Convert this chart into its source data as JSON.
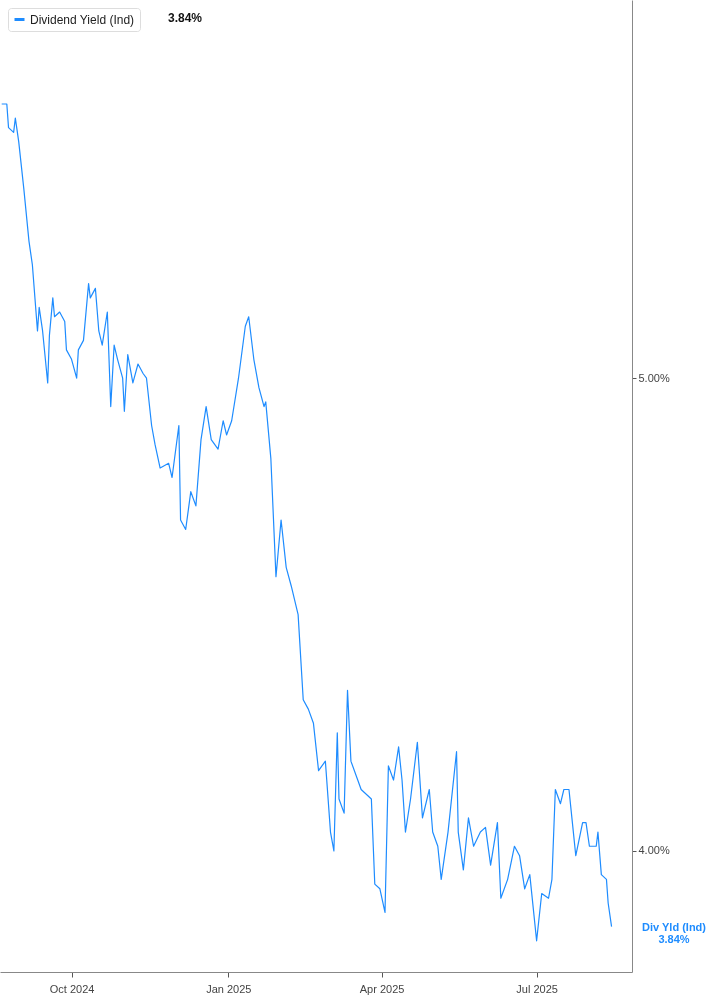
{
  "chart_data": {
    "type": "line",
    "x": [
      "2024-08-21",
      "2024-08-24",
      "2024-08-25",
      "2024-08-28",
      "2024-08-29",
      "2024-08-31",
      "2024-09-03",
      "2024-09-06",
      "2024-09-08",
      "2024-09-11",
      "2024-09-12",
      "2024-09-14",
      "2024-09-17",
      "2024-09-18",
      "2024-09-20",
      "2024-09-21",
      "2024-09-24",
      "2024-09-27",
      "2024-09-28",
      "2024-10-01",
      "2024-10-04",
      "2024-10-05",
      "2024-10-08",
      "2024-10-11",
      "2024-10-12",
      "2024-10-15",
      "2024-10-17",
      "2024-10-19",
      "2024-10-22",
      "2024-10-24",
      "2024-10-26",
      "2024-10-28",
      "2024-10-31",
      "2024-11-01",
      "2024-11-03",
      "2024-11-06",
      "2024-11-09",
      "2024-11-12",
      "2024-11-14",
      "2024-11-17",
      "2024-11-19",
      "2024-11-22",
      "2024-11-27",
      "2024-11-29",
      "2024-12-03",
      "2024-12-04",
      "2024-12-07",
      "2024-12-10",
      "2024-12-13",
      "2024-12-16",
      "2024-12-19",
      "2024-12-22",
      "2024-12-26",
      "2024-12-29",
      "2024-12-31",
      "2025-01-03",
      "2025-01-07",
      "2025-01-11",
      "2025-01-13",
      "2025-01-16",
      "2025-01-19",
      "2025-01-22",
      "2025-01-23",
      "2025-01-26",
      "2025-01-29",
      "2025-02-01",
      "2025-02-04",
      "2025-02-07",
      "2025-02-11",
      "2025-02-14",
      "2025-02-17",
      "2025-02-20",
      "2025-02-23",
      "2025-02-27",
      "2025-03-02",
      "2025-03-04",
      "2025-03-06",
      "2025-03-07",
      "2025-03-10",
      "2025-03-12",
      "2025-03-14",
      "2025-03-18",
      "2025-03-20",
      "2025-03-26",
      "2025-03-28",
      "2025-03-31",
      "2025-04-03",
      "2025-04-05",
      "2025-04-08",
      "2025-04-11",
      "2025-04-13",
      "2025-04-15",
      "2025-04-18",
      "2025-04-22",
      "2025-04-25",
      "2025-04-29",
      "2025-05-01",
      "2025-05-04",
      "2025-05-06",
      "2025-05-10",
      "2025-05-15",
      "2025-05-16",
      "2025-05-19",
      "2025-05-22",
      "2025-05-25",
      "2025-05-29",
      "2025-06-01",
      "2025-06-04",
      "2025-06-08",
      "2025-06-10",
      "2025-06-14",
      "2025-06-18",
      "2025-06-21",
      "2025-06-24",
      "2025-06-27",
      "2025-07-01",
      "2025-07-04",
      "2025-07-08",
      "2025-07-10",
      "2025-07-12",
      "2025-07-15",
      "2025-07-17",
      "2025-07-20",
      "2025-07-22",
      "2025-07-24",
      "2025-07-28",
      "2025-07-30",
      "2025-08-01",
      "2025-08-05",
      "2025-08-06",
      "2025-08-08",
      "2025-08-11",
      "2025-08-12",
      "2025-08-14"
    ],
    "series": [
      {
        "name": "Dividend Yield (Ind)",
        "color": "#1e8cff",
        "values": [
          5.58,
          5.58,
          5.53,
          5.52,
          5.55,
          5.5,
          5.4,
          5.29,
          5.24,
          5.1,
          5.15,
          5.1,
          4.99,
          5.09,
          5.17,
          5.13,
          5.14,
          5.12,
          5.06,
          5.04,
          5.0,
          5.06,
          5.08,
          5.2,
          5.17,
          5.19,
          5.1,
          5.07,
          5.14,
          4.94,
          5.07,
          5.04,
          5.0,
          4.93,
          5.05,
          4.99,
          5.03,
          5.01,
          5.0,
          4.9,
          4.86,
          4.81,
          4.82,
          4.79,
          4.9,
          4.7,
          4.68,
          4.76,
          4.73,
          4.87,
          4.94,
          4.87,
          4.85,
          4.91,
          4.88,
          4.91,
          5.0,
          5.11,
          5.13,
          5.04,
          4.98,
          4.94,
          4.95,
          4.83,
          4.58,
          4.7,
          4.6,
          4.56,
          4.5,
          4.32,
          4.3,
          4.27,
          4.17,
          4.19,
          4.04,
          4.0,
          4.25,
          4.11,
          4.08,
          4.34,
          4.19,
          4.15,
          4.13,
          4.11,
          3.93,
          3.92,
          3.87,
          4.18,
          4.15,
          4.22,
          4.15,
          4.04,
          4.11,
          4.23,
          4.07,
          4.13,
          4.04,
          4.01,
          3.94,
          4.04,
          4.21,
          4.04,
          3.96,
          4.07,
          4.01,
          4.04,
          4.05,
          3.97,
          4.06,
          3.9,
          3.94,
          4.01,
          3.99,
          3.92,
          3.95,
          3.81,
          3.91,
          3.9,
          3.94,
          4.13,
          4.1,
          4.13,
          4.13,
          4.06,
          3.99,
          4.06,
          4.06,
          4.01,
          4.01,
          4.04,
          3.95,
          3.94,
          3.89,
          3.84
        ]
      }
    ],
    "xlim": [
      "2024-08-20",
      "2025-08-26"
    ],
    "xticks": [
      {
        "value": "2024-10-01",
        "label": "Oct 2024"
      },
      {
        "value": "2025-01-01",
        "label": "Jan 2025"
      },
      {
        "value": "2025-04-01",
        "label": "Apr 2025"
      },
      {
        "value": "2025-07-01",
        "label": "Jul 2025"
      }
    ],
    "ylim": [
      3.744,
      5.8
    ],
    "yticks": [
      {
        "value": 4,
        "label": "4.00%"
      },
      {
        "value": 5,
        "label": "5.00%"
      }
    ],
    "grid": false,
    "legend": "top left",
    "marker": "none",
    "line_style": "solid",
    "annotations": [
      "3.84%",
      "Div Yld (Ind)",
      "3.84%"
    ]
  }
}
